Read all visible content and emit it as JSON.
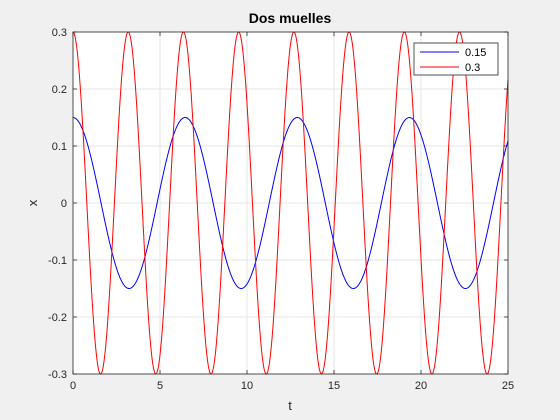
{
  "chart_data": {
    "type": "line",
    "title": "Dos muelles",
    "xlabel": "t",
    "ylabel": "x",
    "xlim": [
      0,
      25
    ],
    "ylim": [
      -0.3,
      0.3
    ],
    "xticks": [
      0,
      5,
      10,
      15,
      20,
      25
    ],
    "yticks": [
      0.3,
      0.2,
      0.1,
      0,
      -0.1,
      -0.2,
      -0.3
    ],
    "xtick_labels": [
      "0",
      "5",
      "10",
      "15",
      "20",
      "25"
    ],
    "ytick_labels": [
      "0.3",
      "0.2",
      "0.1",
      "0",
      "-0.1",
      "-0.2",
      "-0.3"
    ],
    "grid": true,
    "legend_position": "top-right",
    "series": [
      {
        "name": "0.15",
        "color": "#0000ff",
        "amplitude": 0.15,
        "angular_frequency": 0.975,
        "x": [
          0,
          1.6,
          3.2,
          4.8,
          6.4,
          8.0,
          9.6,
          11.2,
          12.8,
          14.4,
          16.1,
          17.7,
          19.3,
          20.9,
          22.5,
          24.1,
          25
        ],
        "y": [
          0.15,
          0.0,
          -0.15,
          0.0,
          0.15,
          0.0,
          -0.15,
          0.0,
          0.15,
          0.0,
          -0.15,
          0.0,
          0.15,
          0.0,
          -0.15,
          0.0,
          0.13
        ]
      },
      {
        "name": "0.3",
        "color": "#ff0000",
        "amplitude": 0.3,
        "angular_frequency": 1.98,
        "x": [
          0,
          0.8,
          1.6,
          2.4,
          3.2,
          4.0,
          4.8,
          5.6,
          6.3,
          7.1,
          7.9,
          8.7,
          9.5,
          10.3,
          11.1,
          11.9,
          12.7,
          13.5,
          14.3,
          15.1,
          15.9,
          16.7,
          17.5,
          18.3,
          19.0,
          19.8,
          20.6,
          21.4,
          22.2,
          23.0,
          23.8,
          24.6,
          25
        ],
        "y": [
          0.3,
          0.0,
          -0.3,
          0.0,
          0.3,
          0.0,
          -0.3,
          0.0,
          0.3,
          0.0,
          -0.3,
          0.0,
          0.3,
          0.0,
          -0.3,
          0.0,
          0.3,
          0.0,
          -0.3,
          0.0,
          0.3,
          0.0,
          -0.3,
          0.0,
          0.3,
          0.0,
          -0.3,
          0.0,
          0.3,
          0.0,
          -0.3,
          0.0,
          0.13
        ]
      }
    ]
  }
}
